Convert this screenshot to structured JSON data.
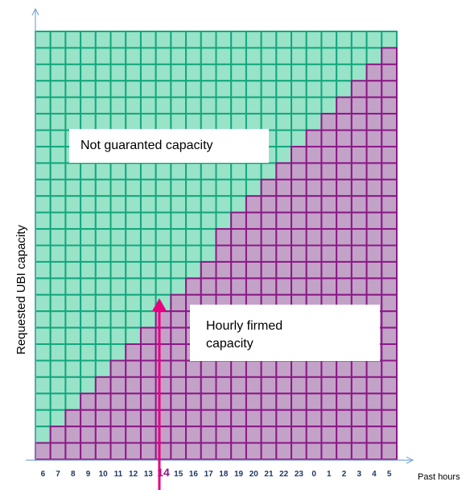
{
  "labels": {
    "not_guaranteed": "Not guaranted  capacity",
    "hourly_firmed": "Hourly  firmed\ncapacity",
    "y_axis": "Requested UBI capacity",
    "x_axis": "Past hours"
  },
  "hours": [
    "6",
    "7",
    "8",
    "9",
    "10",
    "11",
    "12",
    "13",
    "14",
    "15",
    "16",
    "17",
    "18",
    "19",
    "20",
    "21",
    "22",
    "23",
    "0",
    "1",
    "2",
    "3",
    "4",
    "5"
  ],
  "highlighted_hour": "14",
  "grid": {
    "columns": 24,
    "rows": 26
  },
  "colors": {
    "not_guaranteed_fill": "#99e3c8",
    "not_guaranteed_line": "#14a87e",
    "firmed_fill": "#c3a2c8",
    "firmed_line": "#8b1a86",
    "axis": "#7fa7d6",
    "arrow": "#e6007e",
    "hour_text": "#1f3864",
    "highlight_text": "#8b1a86"
  }
}
